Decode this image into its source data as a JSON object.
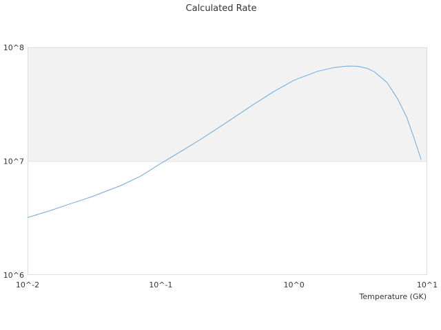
{
  "chart_data": {
    "type": "line",
    "title": "Calculated Rate",
    "xlabel": "Temperature (GK)",
    "ylabel": "",
    "x_scale": "log",
    "y_scale": "log",
    "xlim": [
      0.01,
      10
    ],
    "ylim": [
      1000000,
      100000000
    ],
    "x_ticks": [
      {
        "value": 0.01,
        "label": "10^-2"
      },
      {
        "value": 0.1,
        "label": "10^-1"
      },
      {
        "value": 1,
        "label": "10^0"
      },
      {
        "value": 10,
        "label": "10^1"
      }
    ],
    "y_ticks": [
      {
        "value": 1000000,
        "label": "10^6"
      },
      {
        "value": 10000000,
        "label": "10^7"
      },
      {
        "value": 100000000,
        "label": "10^8"
      }
    ],
    "band_color": "#f2f2f2",
    "grid": false,
    "series": [
      {
        "color": "#6aa8e0",
        "x": [
          0.01,
          0.015,
          0.02,
          0.03,
          0.05,
          0.07,
          0.1,
          0.15,
          0.2,
          0.3,
          0.5,
          0.7,
          1.0,
          1.5,
          2.0,
          2.5,
          3.0,
          3.5,
          4.0,
          5.0,
          6.0,
          7.0,
          8.0,
          9.0
        ],
        "y": [
          3200000,
          3700000,
          4150000,
          4850000,
          6100000,
          7350000,
          9550000,
          12700000,
          15600000,
          21300000,
          31700000,
          40700000,
          51500000,
          61600000,
          66600000,
          68600000,
          68300000,
          65800000,
          61200000,
          49100000,
          35300000,
          24500000,
          15700000,
          10300000
        ]
      }
    ]
  }
}
